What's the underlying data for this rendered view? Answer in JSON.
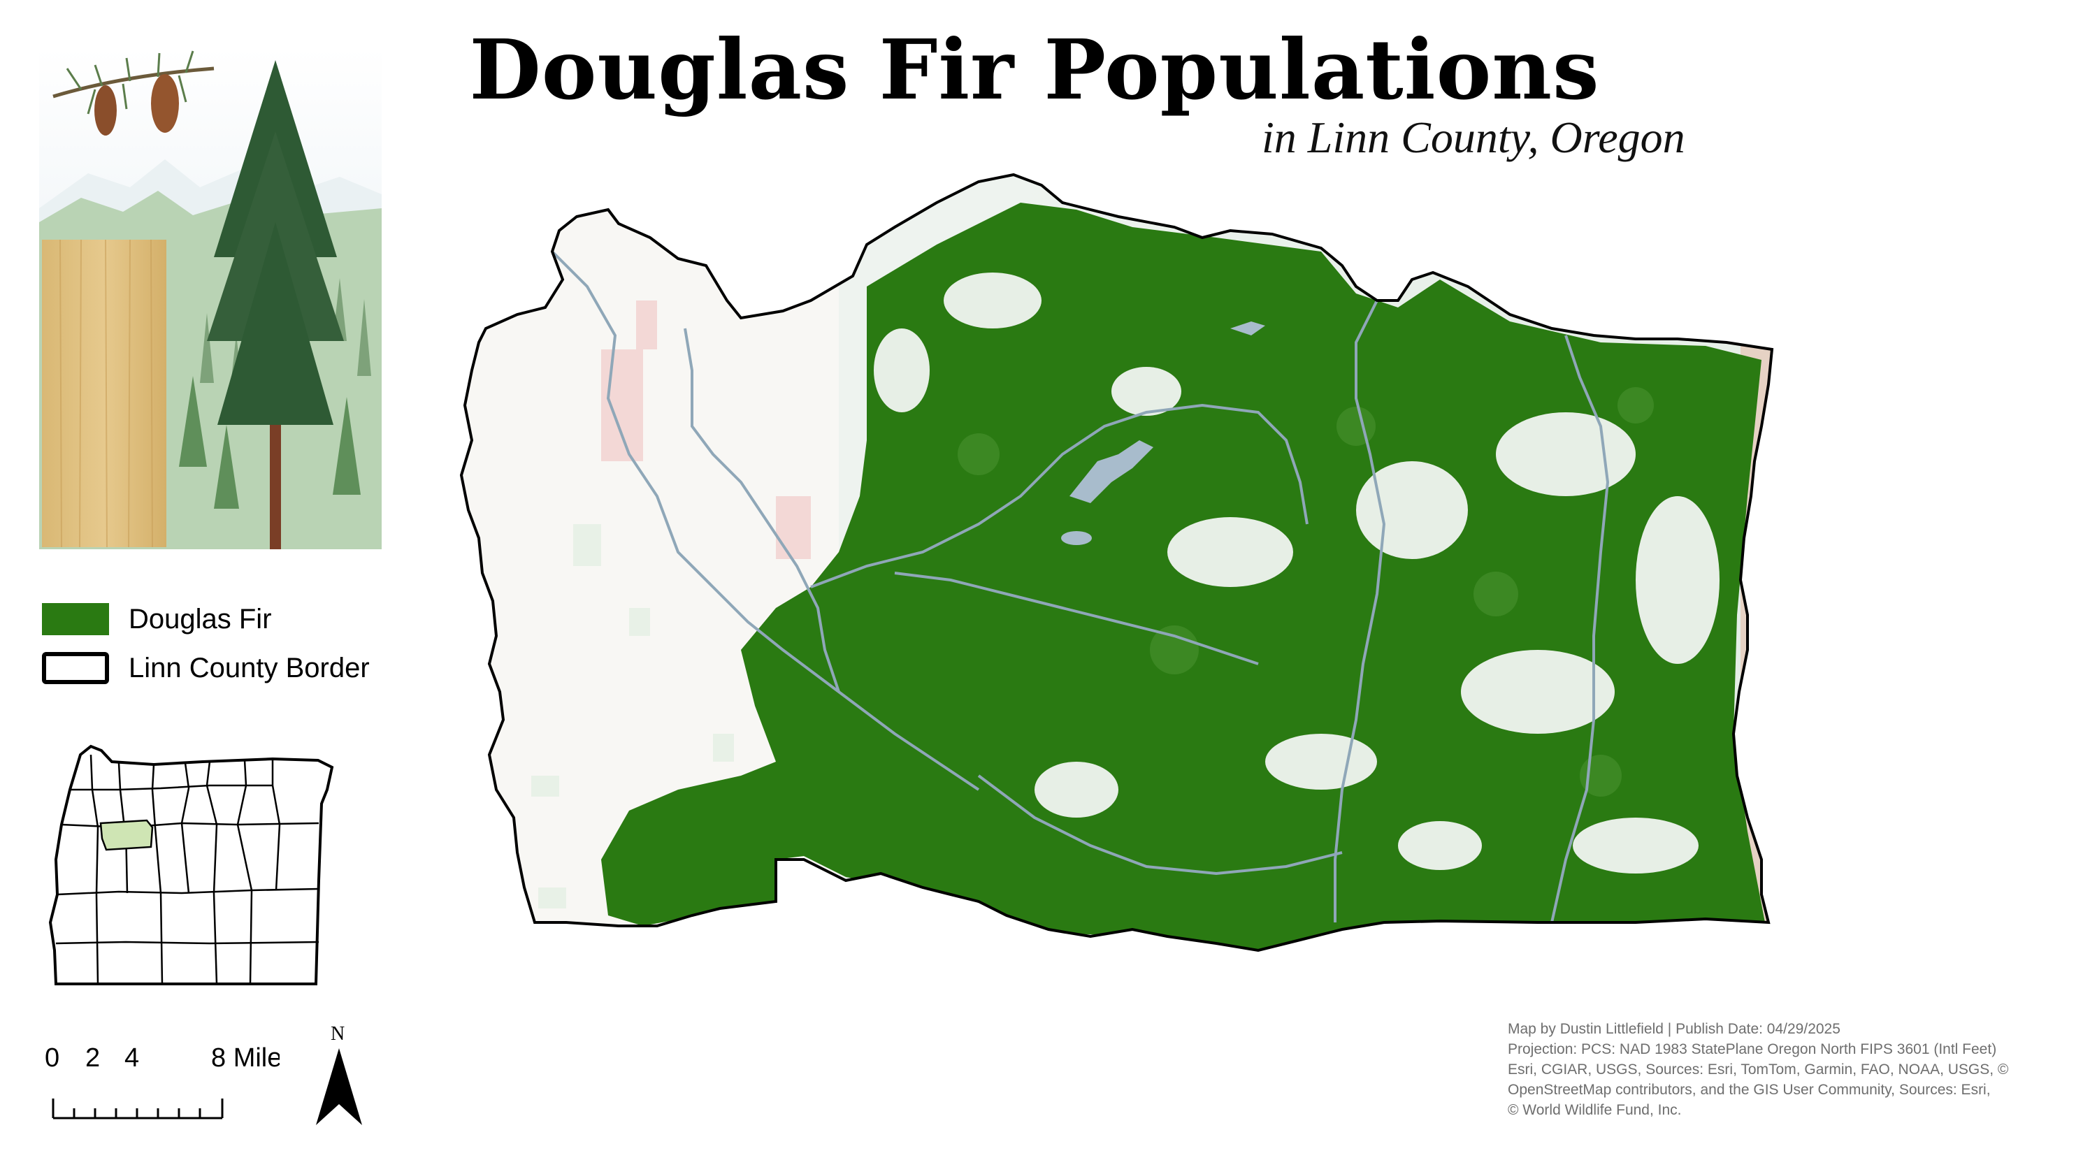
{
  "title": "Douglas Fir Populations",
  "subtitle": "in Linn County, Oregon",
  "legend": {
    "items": [
      {
        "label": "Douglas Fir",
        "color": "#2a7a12"
      },
      {
        "label": "Linn County Border",
        "color": "#000000"
      }
    ]
  },
  "scale_bar": {
    "tick_labels": [
      "0",
      "2",
      "4",
      "8 Miles"
    ]
  },
  "north_arrow": {
    "label": "N"
  },
  "credits": {
    "lines": [
      "Map by Dustin Littlefield | Publish Date: 04/29/2025",
      "Projection: PCS: NAD 1983 StatePlane Oregon North FIPS 3601 (Intl Feet)",
      "Esri, CGIAR, USGS, Sources: Esri, TomTom, Garmin, FAO, NOAA, USGS, ©",
      "OpenStreetMap contributors, and the GIS User Community, Sources: Esri,",
      "© World Wildlife Fund, Inc."
    ]
  },
  "colors": {
    "forest": "#2a7a12",
    "river": "#8fa7b8",
    "lake": "#a8bccc",
    "urban": "#f3d8d6",
    "valley": "#f8f7f4",
    "locator_highlight": "#cfe5b4"
  }
}
